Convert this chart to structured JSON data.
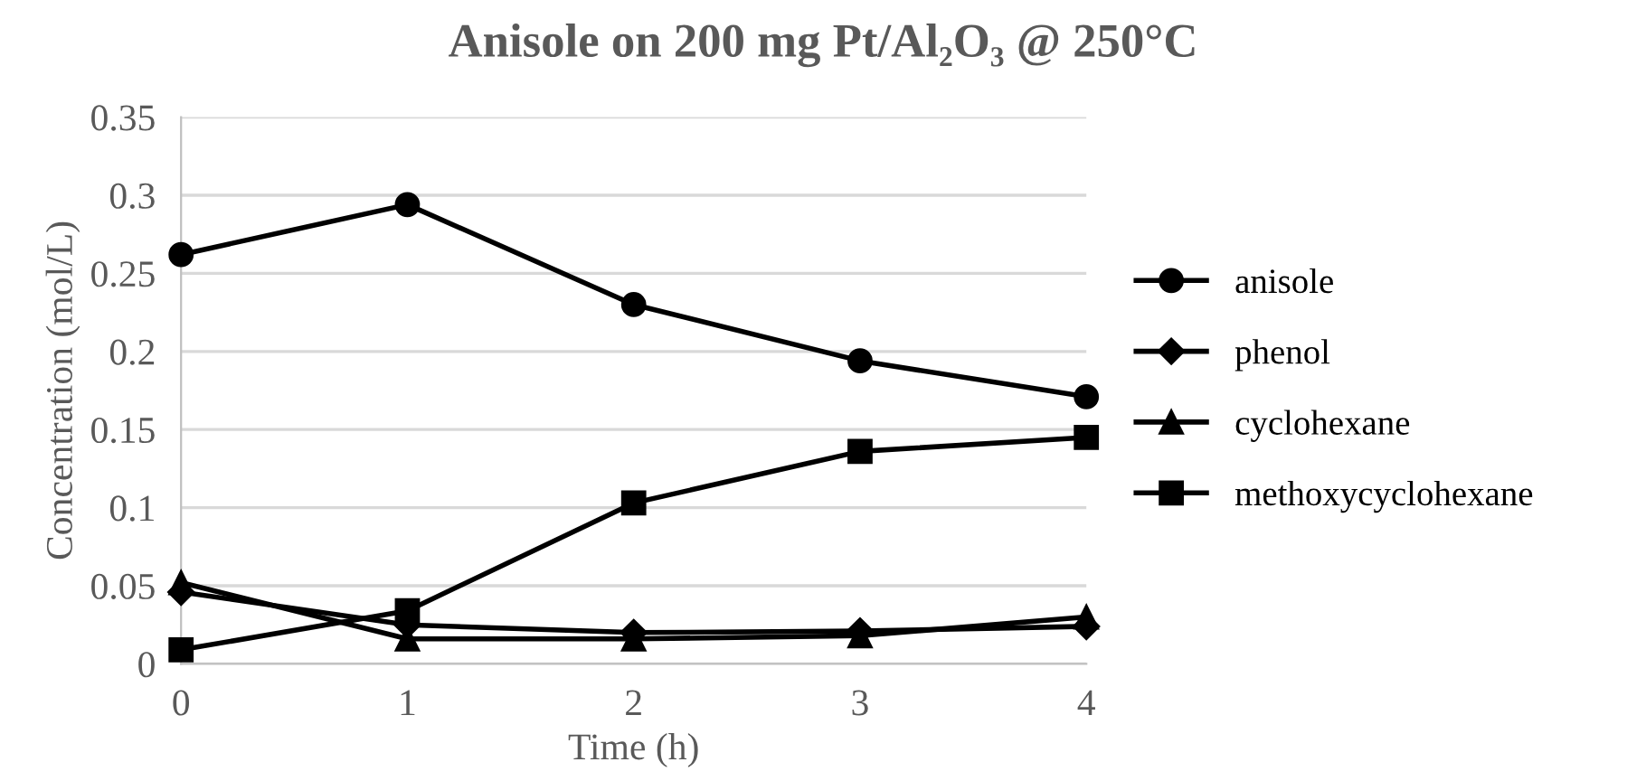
{
  "chart_data": {
    "type": "line",
    "title": "Anisole on 200 mg Pt/Al₂O₃ @ 250°C",
    "xlabel": "Time (h)",
    "ylabel": "Concentration (mol/L)",
    "categories": [
      "0",
      "1",
      "2",
      "3",
      "4"
    ],
    "series": [
      {
        "name": "anisole",
        "color": "#000000",
        "marker": "circle",
        "values": [
          0.262,
          0.294,
          0.23,
          0.194,
          0.171
        ]
      },
      {
        "name": "phenol",
        "color": "#000000",
        "marker": "diamond",
        "values": [
          0.046,
          0.025,
          0.02,
          0.021,
          0.024
        ]
      },
      {
        "name": "cyclohexane",
        "color": "#000000",
        "marker": "triangle",
        "values": [
          0.052,
          0.016,
          0.016,
          0.018,
          0.03
        ]
      },
      {
        "name": "methoxycyclohexane",
        "color": "#000000",
        "marker": "square",
        "values": [
          0.009,
          0.034,
          0.103,
          0.136,
          0.145
        ]
      }
    ],
    "ylim": [
      0,
      0.35
    ],
    "yticks": [
      0,
      0.05,
      0.1,
      0.15,
      0.2,
      0.25,
      0.3,
      0.35
    ],
    "grid": "y",
    "legend": "right",
    "line_style": "solid"
  }
}
